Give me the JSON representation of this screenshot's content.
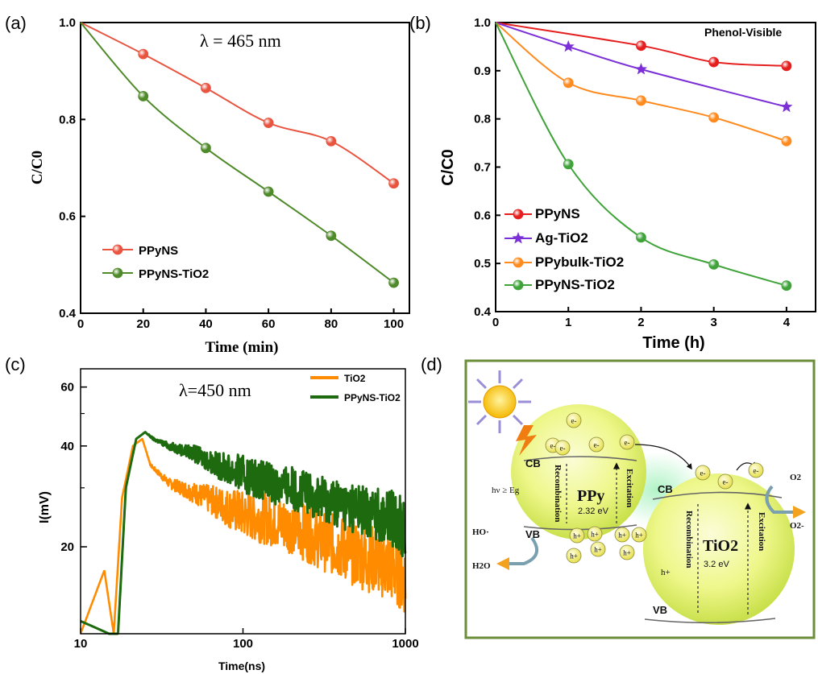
{
  "panels": {
    "a": {
      "label": "(a)"
    },
    "b": {
      "label": "(b)"
    },
    "c": {
      "label": "(c)"
    },
    "d": {
      "label": "(d)"
    }
  },
  "chart_data": [
    {
      "panel": "a",
      "type": "line",
      "annotation": "λ = 465 nm",
      "xlabel": "Time (min)",
      "ylabel": "C/C0",
      "xlim": [
        0,
        105
      ],
      "ylim": [
        0.4,
        1.0
      ],
      "xticks": [
        "0",
        "20",
        "40",
        "60",
        "80",
        "100"
      ],
      "yticks": [
        "0.4",
        "0.6",
        "0.8",
        "1.0"
      ],
      "legend_position": "bottom-left",
      "series": [
        {
          "name": "PPyNS",
          "color": "#e8543f",
          "x": [
            0,
            20,
            40,
            60,
            80,
            100
          ],
          "y": [
            1.0,
            0.935,
            0.865,
            0.793,
            0.755,
            0.668
          ]
        },
        {
          "name": "PPyNS-TiO2",
          "color": "#4f8a2a",
          "x": [
            0,
            20,
            40,
            60,
            80,
            100
          ],
          "y": [
            1.0,
            0.848,
            0.741,
            0.651,
            0.56,
            0.463
          ]
        }
      ]
    },
    {
      "panel": "b",
      "type": "line",
      "annotation": "Phenol-Visible",
      "xlabel": "Time (h)",
      "ylabel": "C/C0",
      "xlim": [
        0,
        4.4
      ],
      "ylim": [
        0.4,
        1.0
      ],
      "xticks": [
        "0",
        "1",
        "2",
        "3",
        "4"
      ],
      "yticks": [
        "0.4",
        "0.5",
        "0.6",
        "0.7",
        "0.8",
        "0.9",
        "1.0"
      ],
      "legend_position": "bottom-left",
      "series": [
        {
          "name": "PPyNS",
          "color": "#e51e1e",
          "marker": "circle",
          "x": [
            0,
            2,
            3,
            4
          ],
          "y": [
            1.0,
            0.952,
            0.918,
            0.91
          ]
        },
        {
          "name": "Ag-TiO2",
          "color": "#7b2fd6",
          "marker": "star",
          "x": [
            0,
            1,
            2,
            4
          ],
          "y": [
            1.0,
            0.95,
            0.903,
            0.825
          ]
        },
        {
          "name": "PPybulk-TiO2",
          "color": "#ff8a1e",
          "marker": "circle",
          "x": [
            0,
            1,
            2,
            3,
            4
          ],
          "y": [
            1.0,
            0.875,
            0.838,
            0.803,
            0.754
          ]
        },
        {
          "name": "PPyNS-TiO2",
          "color": "#3fa33a",
          "marker": "circle",
          "x": [
            0,
            1,
            2,
            3,
            4
          ],
          "y": [
            1.0,
            0.706,
            0.554,
            0.498,
            0.454
          ]
        }
      ]
    },
    {
      "panel": "c",
      "type": "line",
      "annotation": "λ=450 nm",
      "xlabel": "Time(ns)",
      "ylabel": "I(mV)",
      "xscale": "log",
      "yscale": "log",
      "xlim": [
        10,
        1000
      ],
      "ylim": [
        11,
        68
      ],
      "xticks": [
        "10",
        "100",
        "1000"
      ],
      "yticks": [
        "20",
        "40",
        "60"
      ],
      "legend_position": "top-right",
      "series": [
        {
          "name": "TiO2",
          "color": "#ff8c00",
          "x": [
            10,
            14,
            16,
            18,
            21,
            24,
            27,
            35,
            50,
            70,
            100,
            150,
            200,
            300,
            500,
            700,
            900,
            1000
          ],
          "y": [
            11,
            17,
            11,
            28,
            40,
            42,
            35,
            31,
            29,
            27,
            25,
            24,
            23,
            21,
            19,
            18,
            17,
            16
          ]
        },
        {
          "name": "PPyNS-TiO2",
          "color": "#1e6b0f",
          "x": [
            10,
            15,
            17,
            19,
            22,
            25,
            28,
            35,
            50,
            70,
            100,
            150,
            200,
            300,
            500,
            700,
            900,
            1000
          ],
          "y": [
            12,
            11,
            11,
            30,
            42,
            44,
            42,
            40,
            38,
            35,
            33,
            31,
            30,
            28,
            26,
            25,
            24,
            22
          ]
        }
      ]
    }
  ],
  "diagram": {
    "labels": {
      "cb": "CB",
      "vb": "VB",
      "hv": "hν ≥ Eg",
      "ppy": "PPy",
      "ppy_gap": "2.32 eV",
      "tio2": "TiO2",
      "tio2_gap": "3.2 eV",
      "recombination": "Recombination",
      "excitation": "Excitation",
      "electron": "e-",
      "hole": "h+",
      "o2": "O2",
      "o2_minus": "O2-",
      "ho": "HO·",
      "h2o": "H2O"
    }
  }
}
